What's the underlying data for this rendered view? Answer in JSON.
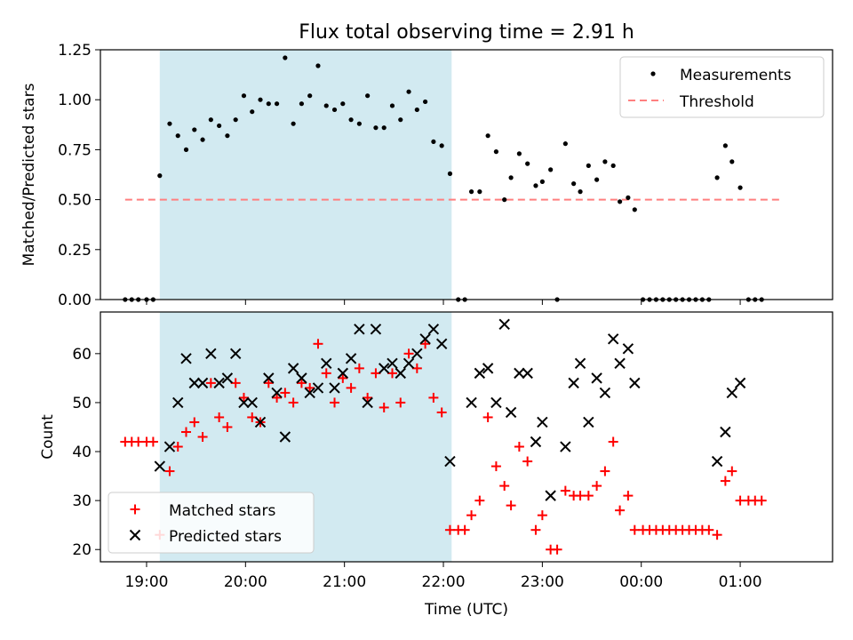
{
  "title": "Flux total observing time = 2.91 h",
  "colors": {
    "shade": "#add8e6",
    "measurement": "#000000",
    "threshold": "#ff7f7f",
    "matched": "#ff0000",
    "predicted": "#000000"
  },
  "chart_data": [
    {
      "type": "scatter",
      "panel": "top",
      "xlabel": "",
      "ylabel": "Matched/Predicted stars",
      "xlim": [
        "18:32",
        "01:56"
      ],
      "ylim": [
        0,
        1.25
      ],
      "yticks": [
        "0.00",
        "0.25",
        "0.50",
        "0.75",
        "1.00",
        "1.25"
      ],
      "shaded_interval": [
        "19:08",
        "22:05"
      ],
      "legend": {
        "placement": "top-right",
        "entries": [
          "Measurements",
          "Threshold"
        ]
      },
      "threshold": {
        "name": "Threshold",
        "value": 0.5,
        "x_range": [
          "18:47",
          "01:25"
        ]
      },
      "series": [
        {
          "name": "Measurements",
          "marker": "dot",
          "points": [
            [
              "18:47",
              0
            ],
            [
              "18:51",
              0
            ],
            [
              "18:55",
              0
            ],
            [
              "19:00",
              0
            ],
            [
              "19:04",
              0
            ],
            [
              "19:08",
              0.62
            ],
            [
              "19:14",
              0.88
            ],
            [
              "19:19",
              0.82
            ],
            [
              "19:24",
              0.75
            ],
            [
              "19:29",
              0.85
            ],
            [
              "19:34",
              0.8
            ],
            [
              "19:39",
              0.9
            ],
            [
              "19:44",
              0.87
            ],
            [
              "19:49",
              0.82
            ],
            [
              "19:54",
              0.9
            ],
            [
              "19:59",
              1.02
            ],
            [
              "20:04",
              0.94
            ],
            [
              "20:09",
              1.0
            ],
            [
              "20:14",
              0.98
            ],
            [
              "20:19",
              0.98
            ],
            [
              "20:24",
              1.21
            ],
            [
              "20:29",
              0.88
            ],
            [
              "20:34",
              0.98
            ],
            [
              "20:39",
              1.02
            ],
            [
              "20:44",
              1.17
            ],
            [
              "20:49",
              0.97
            ],
            [
              "20:54",
              0.95
            ],
            [
              "20:59",
              0.98
            ],
            [
              "21:04",
              0.9
            ],
            [
              "21:09",
              0.88
            ],
            [
              "21:14",
              1.02
            ],
            [
              "21:19",
              0.86
            ],
            [
              "21:24",
              0.86
            ],
            [
              "21:29",
              0.97
            ],
            [
              "21:34",
              0.9
            ],
            [
              "21:39",
              1.04
            ],
            [
              "21:44",
              0.95
            ],
            [
              "21:49",
              0.99
            ],
            [
              "21:54",
              0.79
            ],
            [
              "21:59",
              0.77
            ],
            [
              "22:04",
              0.63
            ],
            [
              "22:09",
              0
            ],
            [
              "22:13",
              0
            ],
            [
              "22:17",
              0.54
            ],
            [
              "22:22",
              0.54
            ],
            [
              "22:27",
              0.82
            ],
            [
              "22:32",
              0.74
            ],
            [
              "22:37",
              0.5
            ],
            [
              "22:41",
              0.61
            ],
            [
              "22:46",
              0.73
            ],
            [
              "22:51",
              0.68
            ],
            [
              "22:56",
              0.57
            ],
            [
              "23:00",
              0.59
            ],
            [
              "23:05",
              0.65
            ],
            [
              "23:09",
              0
            ],
            [
              "23:14",
              0.78
            ],
            [
              "23:19",
              0.58
            ],
            [
              "23:23",
              0.54
            ],
            [
              "23:28",
              0.67
            ],
            [
              "23:33",
              0.6
            ],
            [
              "23:38",
              0.69
            ],
            [
              "23:43",
              0.67
            ],
            [
              "23:47",
              0.49
            ],
            [
              "23:52",
              0.51
            ],
            [
              "23:56",
              0.45
            ],
            [
              "00:01",
              0
            ],
            [
              "00:05",
              0
            ],
            [
              "00:09",
              0
            ],
            [
              "00:13",
              0
            ],
            [
              "00:17",
              0
            ],
            [
              "00:21",
              0
            ],
            [
              "00:25",
              0
            ],
            [
              "00:29",
              0
            ],
            [
              "00:33",
              0
            ],
            [
              "00:37",
              0
            ],
            [
              "00:41",
              0
            ],
            [
              "00:46",
              0.61
            ],
            [
              "00:51",
              0.77
            ],
            [
              "00:55",
              0.69
            ],
            [
              "01:00",
              0.56
            ],
            [
              "01:05",
              0
            ],
            [
              "01:09",
              0
            ],
            [
              "01:13",
              0
            ]
          ]
        }
      ]
    },
    {
      "type": "scatter",
      "panel": "bottom",
      "xlabel": "Time (UTC)",
      "ylabel": "Count",
      "xlim": [
        "18:32",
        "01:56"
      ],
      "ylim": [
        17.5,
        68.5
      ],
      "yticks": [
        "20",
        "30",
        "40",
        "50",
        "60"
      ],
      "xticks": [
        "19:00",
        "20:00",
        "21:00",
        "22:00",
        "23:00",
        "00:00",
        "01:00"
      ],
      "shaded_interval": [
        "19:08",
        "22:05"
      ],
      "legend": {
        "placement": "bottom-left",
        "entries": [
          "Matched stars",
          "Predicted stars"
        ]
      },
      "series": [
        {
          "name": "Matched stars",
          "marker": "plus",
          "points": [
            [
              "18:47",
              42
            ],
            [
              "18:51",
              42
            ],
            [
              "18:55",
              42
            ],
            [
              "19:00",
              42
            ],
            [
              "19:04",
              42
            ],
            [
              "19:08",
              23
            ],
            [
              "19:14",
              36
            ],
            [
              "19:19",
              41
            ],
            [
              "19:24",
              44
            ],
            [
              "19:29",
              46
            ],
            [
              "19:34",
              43
            ],
            [
              "19:39",
              54
            ],
            [
              "19:44",
              47
            ],
            [
              "19:49",
              45
            ],
            [
              "19:54",
              54
            ],
            [
              "19:59",
              51
            ],
            [
              "20:04",
              47
            ],
            [
              "20:09",
              46
            ],
            [
              "20:14",
              54
            ],
            [
              "20:19",
              51
            ],
            [
              "20:24",
              52
            ],
            [
              "20:29",
              50
            ],
            [
              "20:34",
              54
            ],
            [
              "20:39",
              53
            ],
            [
              "20:44",
              62
            ],
            [
              "20:49",
              56
            ],
            [
              "20:54",
              50
            ],
            [
              "20:59",
              55
            ],
            [
              "21:04",
              53
            ],
            [
              "21:09",
              57
            ],
            [
              "21:14",
              51
            ],
            [
              "21:19",
              56
            ],
            [
              "21:24",
              49
            ],
            [
              "21:29",
              56
            ],
            [
              "21:34",
              50
            ],
            [
              "21:39",
              60
            ],
            [
              "21:44",
              57
            ],
            [
              "21:49",
              62
            ],
            [
              "21:54",
              51
            ],
            [
              "21:59",
              48
            ],
            [
              "22:04",
              24
            ],
            [
              "22:09",
              24
            ],
            [
              "22:13",
              24
            ],
            [
              "22:17",
              27
            ],
            [
              "22:22",
              30
            ],
            [
              "22:27",
              47
            ],
            [
              "22:32",
              37
            ],
            [
              "22:37",
              33
            ],
            [
              "22:41",
              29
            ],
            [
              "22:46",
              41
            ],
            [
              "22:51",
              38
            ],
            [
              "22:56",
              24
            ],
            [
              "23:00",
              27
            ],
            [
              "23:05",
              20
            ],
            [
              "23:09",
              20
            ],
            [
              "23:14",
              32
            ],
            [
              "23:19",
              31
            ],
            [
              "23:23",
              31
            ],
            [
              "23:28",
              31
            ],
            [
              "23:33",
              33
            ],
            [
              "23:38",
              36
            ],
            [
              "23:43",
              42
            ],
            [
              "23:47",
              28
            ],
            [
              "23:52",
              31
            ],
            [
              "23:56",
              24
            ],
            [
              "00:01",
              24
            ],
            [
              "00:05",
              24
            ],
            [
              "00:09",
              24
            ],
            [
              "00:13",
              24
            ],
            [
              "00:17",
              24
            ],
            [
              "00:21",
              24
            ],
            [
              "00:25",
              24
            ],
            [
              "00:29",
              24
            ],
            [
              "00:33",
              24
            ],
            [
              "00:37",
              24
            ],
            [
              "00:41",
              24
            ],
            [
              "00:46",
              23
            ],
            [
              "00:51",
              34
            ],
            [
              "00:55",
              36
            ],
            [
              "01:00",
              30
            ],
            [
              "01:05",
              30
            ],
            [
              "01:09",
              30
            ],
            [
              "01:13",
              30
            ]
          ]
        },
        {
          "name": "Predicted stars",
          "marker": "x",
          "points": [
            [
              "19:08",
              37
            ],
            [
              "19:14",
              41
            ],
            [
              "19:19",
              50
            ],
            [
              "19:24",
              59
            ],
            [
              "19:29",
              54
            ],
            [
              "19:34",
              54
            ],
            [
              "19:39",
              60
            ],
            [
              "19:44",
              54
            ],
            [
              "19:49",
              55
            ],
            [
              "19:54",
              60
            ],
            [
              "19:59",
              50
            ],
            [
              "20:04",
              50
            ],
            [
              "20:09",
              46
            ],
            [
              "20:14",
              55
            ],
            [
              "20:19",
              52
            ],
            [
              "20:24",
              43
            ],
            [
              "20:29",
              57
            ],
            [
              "20:34",
              55
            ],
            [
              "20:39",
              52
            ],
            [
              "20:44",
              53
            ],
            [
              "20:49",
              58
            ],
            [
              "20:54",
              53
            ],
            [
              "20:59",
              56
            ],
            [
              "21:04",
              59
            ],
            [
              "21:09",
              65
            ],
            [
              "21:14",
              50
            ],
            [
              "21:19",
              65
            ],
            [
              "21:24",
              57
            ],
            [
              "21:29",
              58
            ],
            [
              "21:34",
              56
            ],
            [
              "21:39",
              58
            ],
            [
              "21:44",
              60
            ],
            [
              "21:49",
              63
            ],
            [
              "21:54",
              65
            ],
            [
              "21:59",
              62
            ],
            [
              "22:04",
              38
            ],
            [
              "22:17",
              50
            ],
            [
              "22:22",
              56
            ],
            [
              "22:27",
              57
            ],
            [
              "22:32",
              50
            ],
            [
              "22:37",
              66
            ],
            [
              "22:41",
              48
            ],
            [
              "22:46",
              56
            ],
            [
              "22:51",
              56
            ],
            [
              "22:56",
              42
            ],
            [
              "23:00",
              46
            ],
            [
              "23:05",
              31
            ],
            [
              "23:14",
              41
            ],
            [
              "23:19",
              54
            ],
            [
              "23:23",
              58
            ],
            [
              "23:28",
              46
            ],
            [
              "23:33",
              55
            ],
            [
              "23:38",
              52
            ],
            [
              "23:43",
              63
            ],
            [
              "23:47",
              58
            ],
            [
              "23:52",
              61
            ],
            [
              "23:56",
              54
            ],
            [
              "00:46",
              38
            ],
            [
              "00:51",
              44
            ],
            [
              "00:55",
              52
            ],
            [
              "01:00",
              54
            ]
          ]
        }
      ]
    }
  ]
}
